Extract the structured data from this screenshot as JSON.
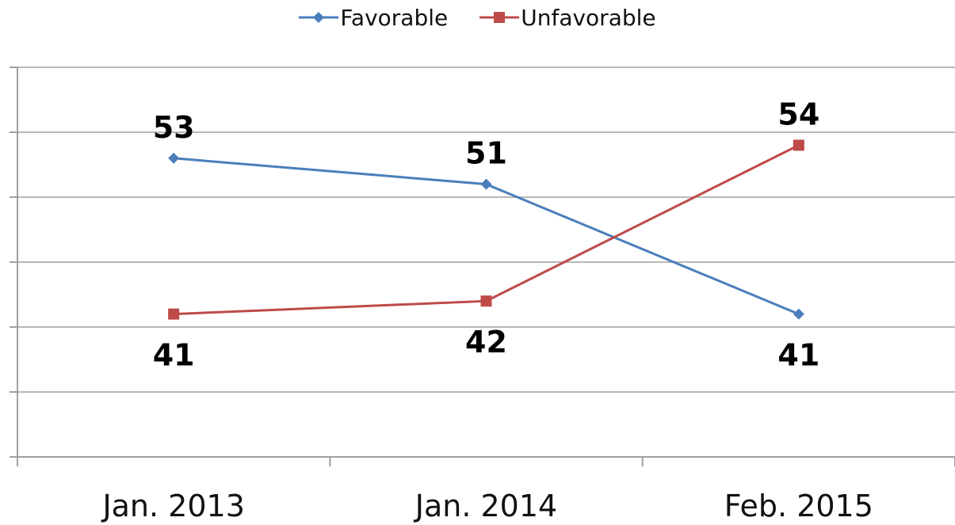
{
  "chart_data": {
    "type": "line",
    "categories": [
      "Jan. 2013",
      "Jan. 2014",
      "Feb. 2015"
    ],
    "series": [
      {
        "name": "Favorable",
        "values": [
          53,
          51,
          41
        ],
        "color": "#4a7ebb",
        "marker": "diamond"
      },
      {
        "name": "Unfavorable",
        "values": [
          41,
          42,
          54
        ],
        "color": "#be4b48",
        "marker": "square"
      }
    ],
    "ylim": [
      30,
      60
    ],
    "grid": true,
    "legend_position": "top-center",
    "title": "",
    "xlabel": "",
    "ylabel": ""
  }
}
